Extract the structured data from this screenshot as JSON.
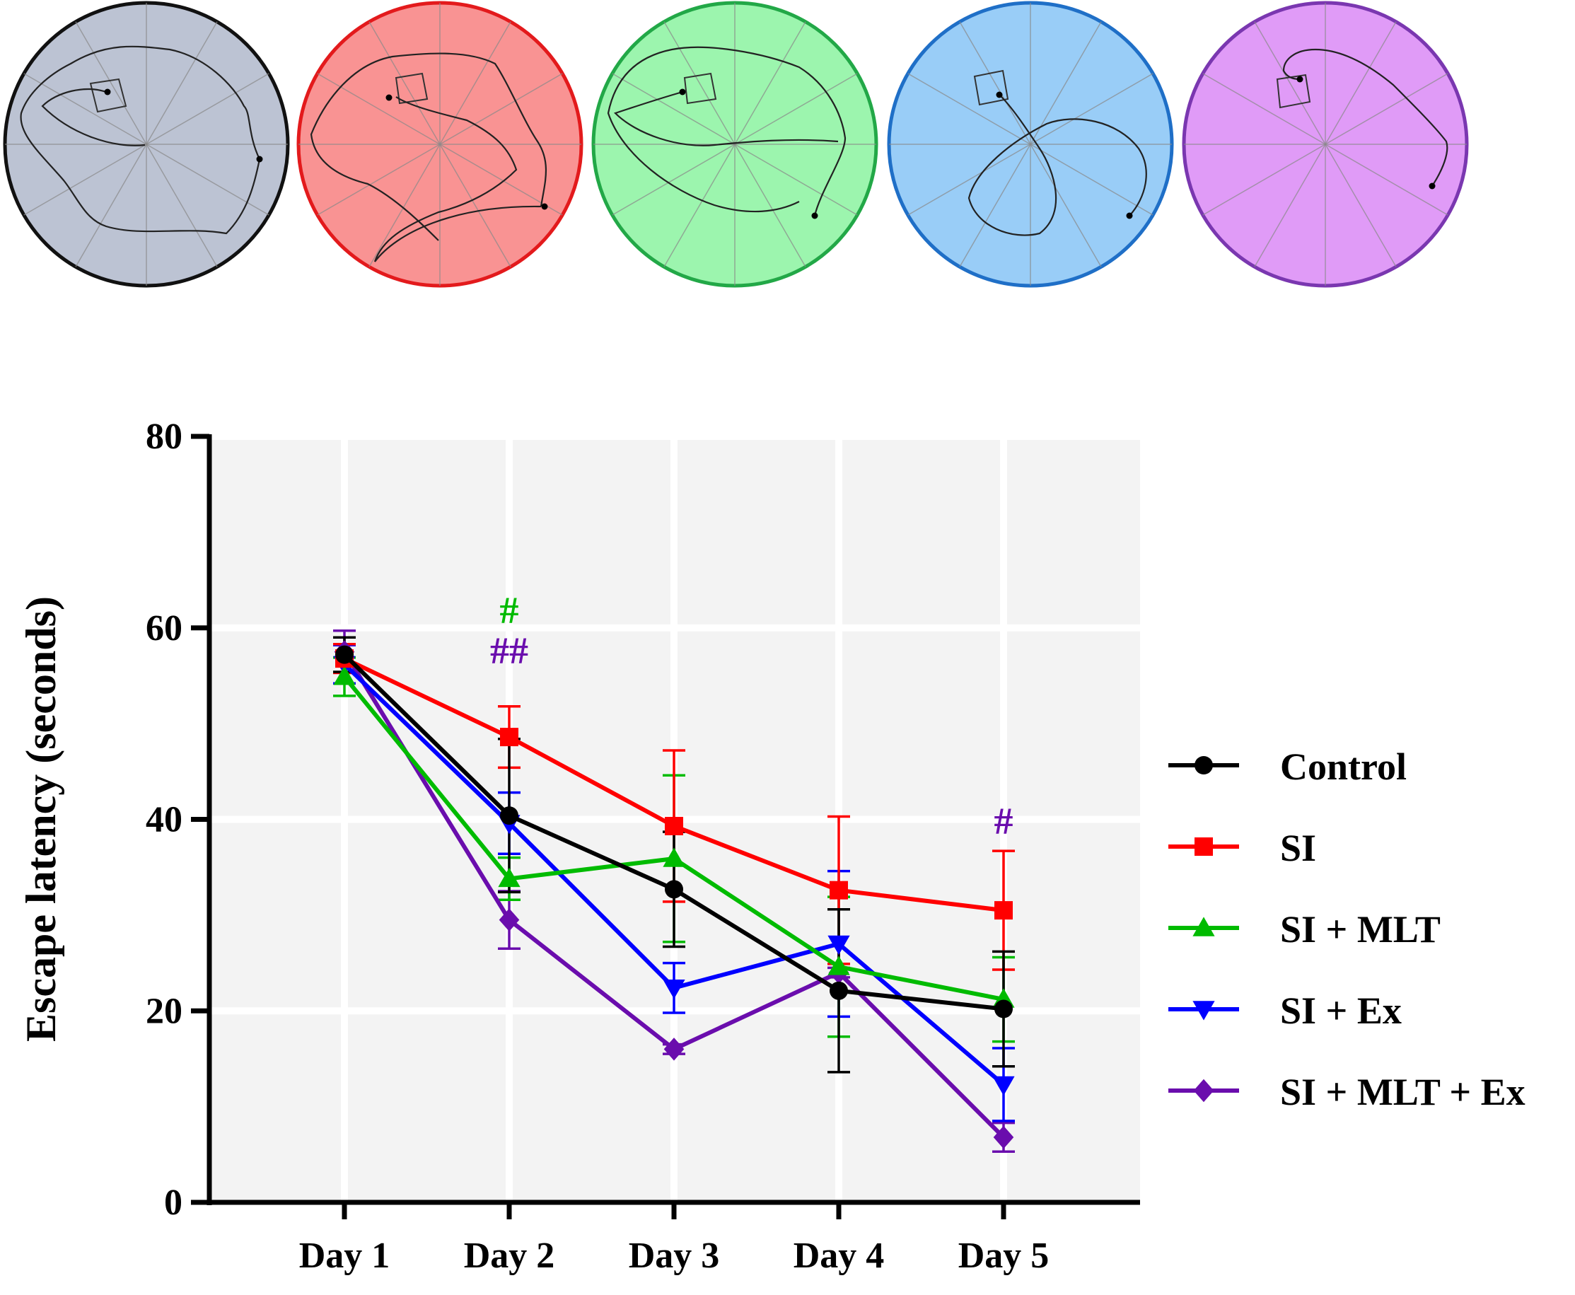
{
  "figure": {
    "arenas": [
      {
        "group": "Control",
        "fill": "#bcc3d3",
        "stroke": "#111111"
      },
      {
        "group": "SI",
        "fill": "#f99393",
        "stroke": "#e31a1c"
      },
      {
        "group": "SI + MLT",
        "fill": "#9cf5ae",
        "stroke": "#22a847"
      },
      {
        "group": "SI + Ex",
        "fill": "#99cdf7",
        "stroke": "#1f6fc7"
      },
      {
        "group": "SI + MLT + Ex",
        "fill": "#e09bf7",
        "stroke": "#7a37b0"
      }
    ]
  },
  "chart_data": {
    "type": "line",
    "ylabel": "Escape latency (seconds)",
    "xlabel": "",
    "ylim": [
      0,
      80
    ],
    "yticks": [
      0,
      20,
      40,
      60,
      80
    ],
    "grid": true,
    "legend_position": "right",
    "categories": [
      "Day 1",
      "Day 2",
      "Day 3",
      "Day 4",
      "Day 5"
    ],
    "series": [
      {
        "name": "Control",
        "color": "#000000",
        "marker": "circle",
        "values": [
          57.2,
          40.4,
          32.7,
          22.1,
          20.2
        ],
        "errors": [
          1.8,
          8.0,
          6.0,
          8.5,
          6.0
        ]
      },
      {
        "name": "SI",
        "color": "#ff0000",
        "marker": "square",
        "values": [
          56.8,
          48.6,
          39.3,
          32.6,
          30.5
        ],
        "errors": [
          1.5,
          3.2,
          7.9,
          7.7,
          6.2
        ]
      },
      {
        "name": "SI + MLT",
        "color": "#00bb00",
        "marker": "triangle-up",
        "values": [
          54.9,
          33.8,
          35.9,
          24.6,
          21.2
        ],
        "errors": [
          2.0,
          2.2,
          8.7,
          7.3,
          4.4
        ]
      },
      {
        "name": "SI + Ex",
        "color": "#0000ff",
        "marker": "triangle-down",
        "values": [
          56.2,
          39.6,
          22.4,
          27.0,
          12.3
        ],
        "errors": [
          2.0,
          3.2,
          2.6,
          7.6,
          3.8
        ]
      },
      {
        "name": "SI + MLT + Ex",
        "color": "#6a0dad",
        "marker": "diamond",
        "values": [
          57.5,
          29.5,
          16.0,
          24.0,
          6.8
        ],
        "errors": [
          2.2,
          3.0,
          0.5,
          0.5,
          1.5
        ]
      }
    ],
    "annotations": [
      {
        "text": "#",
        "category": "Day 2",
        "y": 60.5,
        "color": "#00bb00"
      },
      {
        "text": "##",
        "category": "Day 2",
        "y": 56.3,
        "color": "#6a0dad"
      },
      {
        "text": "#",
        "category": "Day 5",
        "y": 38.5,
        "color": "#6a0dad"
      }
    ]
  }
}
